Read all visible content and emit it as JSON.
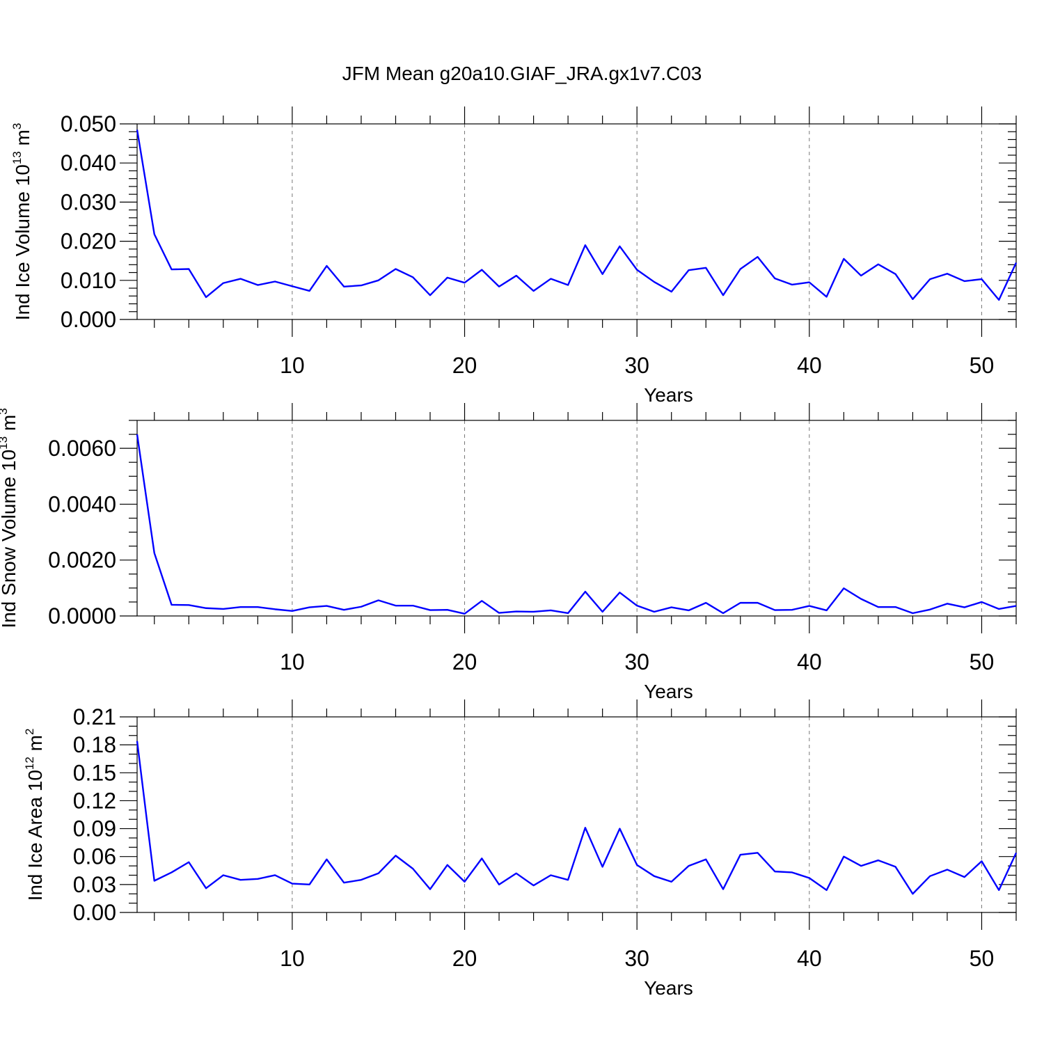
{
  "figure": {
    "title": "JFM Mean g20a10.GIAF_JRA.gx1v7.C03",
    "line_color": "#0000ff"
  },
  "chart_data": [
    {
      "type": "line",
      "xlabel": "Years",
      "ylabel_main": "Ind Ice Volume 10",
      "ylabel_exp": "13",
      "ylabel_unit": "m",
      "ylabel_unit_exp": "3",
      "xlim": [
        1,
        52
      ],
      "ylim": [
        0,
        0.05
      ],
      "x_ticks": [
        10,
        20,
        30,
        40,
        50
      ],
      "x_tick_labels": [
        "10",
        "20",
        "30",
        "40",
        "50"
      ],
      "y_ticks": [
        0,
        0.01,
        0.02,
        0.03,
        0.04,
        0.05
      ],
      "y_tick_labels": [
        "0.000",
        "0.010",
        "0.020",
        "0.030",
        "0.040",
        "0.050"
      ],
      "y_minor_step": 0.002,
      "grid": "vertical dashed at major x ticks",
      "series": [
        {
          "x": [
            1,
            2,
            3,
            4,
            5,
            6,
            7,
            8,
            9,
            10,
            11,
            12,
            13,
            14,
            15,
            16,
            17,
            18,
            19,
            20,
            21,
            22,
            23,
            24,
            25,
            26,
            27,
            28,
            29,
            30,
            31,
            32,
            33,
            34,
            35,
            36,
            37,
            38,
            39,
            40,
            41,
            42,
            43,
            44,
            45,
            46,
            47,
            48,
            49,
            50,
            51,
            52
          ],
          "values": [
            0.0485,
            0.0218,
            0.0128,
            0.0129,
            0.0057,
            0.0093,
            0.0104,
            0.0088,
            0.0097,
            0.0085,
            0.0073,
            0.0137,
            0.0084,
            0.0087,
            0.01,
            0.0129,
            0.0108,
            0.0062,
            0.0107,
            0.0094,
            0.0127,
            0.0084,
            0.0112,
            0.0073,
            0.0104,
            0.0088,
            0.019,
            0.0116,
            0.0187,
            0.0127,
            0.0096,
            0.0071,
            0.0126,
            0.0132,
            0.0062,
            0.0129,
            0.016,
            0.0105,
            0.0089,
            0.0095,
            0.0058,
            0.0155,
            0.0112,
            0.0141,
            0.0116,
            0.0052,
            0.0103,
            0.0117,
            0.0098,
            0.0103,
            0.005,
            0.0145
          ]
        }
      ]
    },
    {
      "type": "line",
      "xlabel": "Years",
      "ylabel_main": "Ind Snow Volume 10",
      "ylabel_exp": "13",
      "ylabel_unit": "m",
      "ylabel_unit_exp": "3",
      "xlim": [
        1,
        52
      ],
      "ylim": [
        0,
        0.007
      ],
      "x_ticks": [
        10,
        20,
        30,
        40,
        50
      ],
      "x_tick_labels": [
        "10",
        "20",
        "30",
        "40",
        "50"
      ],
      "y_ticks": [
        0,
        0.002,
        0.004,
        0.006
      ],
      "y_tick_labels": [
        "0.0000",
        "0.0020",
        "0.0040",
        "0.0060"
      ],
      "y_minor_step": 0.0005,
      "grid": "vertical dashed at major x ticks",
      "series": [
        {
          "x": [
            1,
            2,
            3,
            4,
            5,
            6,
            7,
            8,
            9,
            10,
            11,
            12,
            13,
            14,
            15,
            16,
            17,
            18,
            19,
            20,
            21,
            22,
            23,
            24,
            25,
            26,
            27,
            28,
            29,
            30,
            31,
            32,
            33,
            34,
            35,
            36,
            37,
            38,
            39,
            40,
            41,
            42,
            43,
            44,
            45,
            46,
            47,
            48,
            49,
            50,
            51,
            52
          ],
          "values": [
            0.0065,
            0.00225,
            0.0004,
            0.00039,
            0.00028,
            0.00025,
            0.00032,
            0.00032,
            0.00024,
            0.00018,
            0.00031,
            0.00036,
            0.00022,
            0.00033,
            0.00056,
            0.00037,
            0.00037,
            0.00021,
            0.00022,
            8e-05,
            0.00054,
            0.00011,
            0.00016,
            0.00015,
            0.0002,
            0.0001,
            0.00087,
            0.00015,
            0.00084,
            0.00037,
            0.00015,
            0.00031,
            0.0002,
            0.00047,
            0.0001,
            0.00047,
            0.00047,
            0.00021,
            0.00022,
            0.00036,
            0.0002,
            0.00099,
            0.00061,
            0.00032,
            0.00032,
            0.0001,
            0.00023,
            0.00044,
            0.00031,
            0.0005,
            0.00025,
            0.00036
          ]
        }
      ]
    },
    {
      "type": "line",
      "xlabel": "Years",
      "ylabel_main": "Ind Ice Area 10",
      "ylabel_exp": "12",
      "ylabel_unit": "m",
      "ylabel_unit_exp": "2",
      "xlim": [
        1,
        52
      ],
      "ylim": [
        0,
        0.21
      ],
      "x_ticks": [
        10,
        20,
        30,
        40,
        50
      ],
      "x_tick_labels": [
        "10",
        "20",
        "30",
        "40",
        "50"
      ],
      "y_ticks": [
        0,
        0.03,
        0.06,
        0.09,
        0.12,
        0.15,
        0.18,
        0.21
      ],
      "y_tick_labels": [
        "0.00",
        "0.03",
        "0.06",
        "0.09",
        "0.12",
        "0.15",
        "0.18",
        "0.21"
      ],
      "y_minor_step": 0.01,
      "grid": "vertical dashed at major x ticks",
      "series": [
        {
          "x": [
            1,
            2,
            3,
            4,
            5,
            6,
            7,
            8,
            9,
            10,
            11,
            12,
            13,
            14,
            15,
            16,
            17,
            18,
            19,
            20,
            21,
            22,
            23,
            24,
            25,
            26,
            27,
            28,
            29,
            30,
            31,
            32,
            33,
            34,
            35,
            36,
            37,
            38,
            39,
            40,
            41,
            42,
            43,
            44,
            45,
            46,
            47,
            48,
            49,
            50,
            51,
            52
          ],
          "values": [
            0.184,
            0.034,
            0.043,
            0.054,
            0.026,
            0.04,
            0.035,
            0.036,
            0.04,
            0.031,
            0.03,
            0.057,
            0.032,
            0.035,
            0.042,
            0.061,
            0.047,
            0.025,
            0.051,
            0.033,
            0.058,
            0.03,
            0.042,
            0.029,
            0.04,
            0.035,
            0.091,
            0.049,
            0.09,
            0.051,
            0.039,
            0.033,
            0.05,
            0.057,
            0.025,
            0.062,
            0.064,
            0.044,
            0.043,
            0.037,
            0.024,
            0.06,
            0.05,
            0.056,
            0.049,
            0.02,
            0.039,
            0.046,
            0.038,
            0.055,
            0.024,
            0.064
          ]
        }
      ]
    }
  ]
}
